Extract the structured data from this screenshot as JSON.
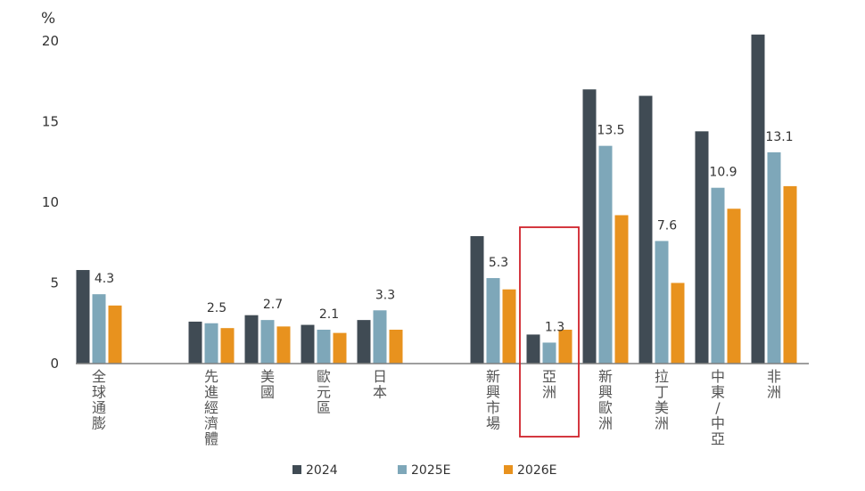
{
  "chart_data": {
    "type": "bar",
    "unit_label": "%",
    "categories": [
      "全球通膨",
      "先進經濟體",
      "美國",
      "歐元區",
      "日本",
      "新興市場",
      "亞洲",
      "新興歐洲",
      "拉丁美洲",
      "中東/中亞",
      "非洲"
    ],
    "series": [
      {
        "name": "2024",
        "color": "#404b54",
        "values": [
          5.8,
          2.6,
          3.0,
          2.4,
          2.7,
          7.9,
          1.8,
          17.0,
          16.6,
          14.4,
          20.4
        ]
      },
      {
        "name": "2025E",
        "color": "#7ea7b9",
        "values": [
          4.3,
          2.5,
          2.7,
          2.1,
          3.3,
          5.3,
          1.3,
          13.5,
          7.6,
          10.9,
          13.1
        ]
      },
      {
        "name": "2026E",
        "color": "#e8921e",
        "values": [
          3.6,
          2.2,
          2.3,
          1.9,
          2.1,
          4.6,
          2.1,
          9.2,
          5.0,
          9.6,
          11.0
        ]
      }
    ],
    "data_labels": [
      "4.3",
      "2.5",
      "2.7",
      "2.1",
      "3.3",
      "5.3",
      "1.3",
      "13.5",
      "7.6",
      "10.9",
      "13.1"
    ],
    "highlight_category": "亞洲",
    "highlight_color": "#d0222b",
    "yticks": [
      "0",
      "5",
      "10",
      "15",
      "20"
    ],
    "ylim": [
      0,
      20
    ],
    "grid": false,
    "legend_position": "bottom-center"
  }
}
